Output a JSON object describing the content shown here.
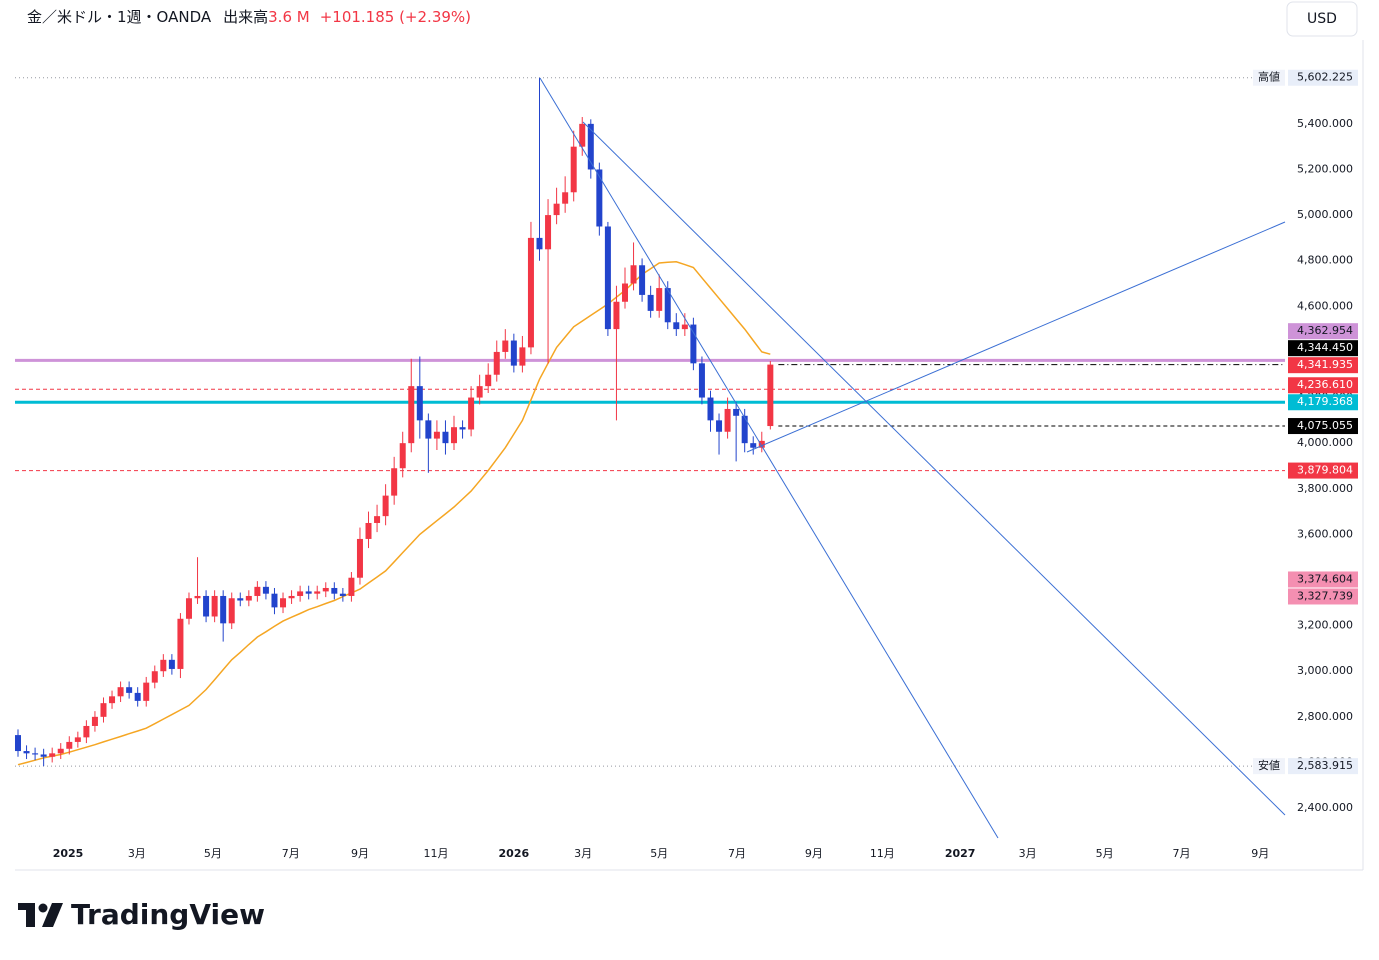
{
  "chart_data": {
    "type": "candlestick",
    "title": "金／米ドル・1週・OANDA",
    "volume_label": "出来高",
    "volume": "3.6 M",
    "change": "+101.185 (+2.39%)",
    "currency": "USD",
    "brand": "TradingView",
    "up_color": "#f23645",
    "down_color": "#2244cc",
    "open": [
      2720,
      2650,
      2640,
      2635,
      2625,
      2640,
      2660,
      2690,
      2710,
      2760,
      2800,
      2860,
      2890,
      2930,
      2905,
      2870,
      2950,
      3000,
      3050,
      3010,
      3230,
      3320,
      3330,
      3240,
      3330,
      3210,
      3320,
      3310,
      3330,
      3370,
      3340,
      3280,
      3320,
      3330,
      3350,
      3340,
      3350,
      3365,
      3340,
      3330,
      3410,
      3580,
      3650,
      3680,
      3770,
      3890,
      4000,
      4250,
      4100,
      4020,
      4050,
      4000,
      4070,
      4060,
      4200,
      4250,
      4300,
      4400,
      4450,
      4340,
      4420,
      4900,
      4850,
      5000,
      5050,
      5100,
      5300,
      5400,
      5200,
      4950,
      4500,
      4620,
      4700,
      4780,
      4650,
      4580,
      4680,
      4530,
      4500,
      4520,
      4350,
      4200,
      4100,
      4050,
      4150,
      4120,
      4000,
      3980,
      4075.055
    ],
    "high": [
      2745,
      2675,
      2665,
      2660,
      2665,
      2685,
      2715,
      2735,
      2785,
      2825,
      2885,
      2915,
      2955,
      2955,
      2930,
      2975,
      3025,
      3075,
      3075,
      3255,
      3345,
      3500,
      3355,
      3355,
      3355,
      3345,
      3345,
      3355,
      3395,
      3395,
      3365,
      3345,
      3355,
      3375,
      3375,
      3375,
      3390,
      3390,
      3365,
      3435,
      3630,
      3700,
      3730,
      3820,
      3940,
      4050,
      4370,
      4380,
      4130,
      4100,
      4100,
      4120,
      4100,
      4250,
      4300,
      4350,
      4450,
      4500,
      4480,
      4470,
      4970,
      5602.225,
      5070,
      5120,
      5170,
      5370,
      5430,
      5420,
      5230,
      4970,
      4690,
      4770,
      4880,
      4810,
      4690,
      4740,
      4710,
      4570,
      4570,
      4550,
      4380,
      4230,
      4130,
      4200,
      4180,
      4150,
      4030,
      4050,
      4360
    ],
    "low": [
      2625,
      2615,
      2610,
      2583.915,
      2600,
      2615,
      2635,
      2665,
      2685,
      2735,
      2775,
      2835,
      2865,
      2880,
      2845,
      2845,
      2925,
      2975,
      2985,
      2970,
      3205,
      3295,
      3215,
      3215,
      3130,
      3185,
      3285,
      3285,
      3305,
      3315,
      3250,
      3255,
      3295,
      3305,
      3315,
      3315,
      3325,
      3315,
      3305,
      3305,
      3380,
      3540,
      3610,
      3640,
      3730,
      3850,
      3960,
      4020,
      3870,
      3970,
      3950,
      3970,
      4020,
      4030,
      4170,
      4220,
      4270,
      4370,
      4310,
      4310,
      4390,
      4800,
      4350,
      4960,
      5010,
      5060,
      5260,
      5160,
      4910,
      4470,
      4100,
      4590,
      4670,
      4620,
      4550,
      4550,
      4500,
      4470,
      4470,
      4320,
      4170,
      4050,
      3950,
      4020,
      3920,
      3960,
      3950,
      3960,
      4060
    ],
    "close": [
      2650,
      2640,
      2635,
      2625,
      2640,
      2660,
      2690,
      2710,
      2760,
      2800,
      2860,
      2890,
      2930,
      2905,
      2870,
      2950,
      3000,
      3050,
      3010,
      3230,
      3320,
      3330,
      3240,
      3330,
      3210,
      3320,
      3310,
      3330,
      3370,
      3340,
      3280,
      3320,
      3330,
      3350,
      3340,
      3350,
      3365,
      3340,
      3330,
      3410,
      3580,
      3650,
      3680,
      3770,
      3890,
      4000,
      4250,
      4100,
      4020,
      4050,
      4000,
      4070,
      4060,
      4200,
      4250,
      4300,
      4400,
      4450,
      4340,
      4420,
      4900,
      4850,
      5000,
      5050,
      5100,
      5300,
      5400,
      5200,
      4950,
      4500,
      4620,
      4700,
      4780,
      4650,
      4580,
      4680,
      4530,
      4500,
      4520,
      4350,
      4200,
      4100,
      4050,
      4150,
      4120,
      4000,
      3980,
      4010,
      4344.45
    ],
    "moving_average": {
      "color": "#f5a623",
      "values": [
        2590,
        2600,
        2610,
        2620,
        2628,
        2635,
        2645,
        2656,
        2667,
        2678,
        2690,
        2702,
        2714,
        2726,
        2738,
        2750,
        2770,
        2790,
        2810,
        2830,
        2850,
        2885,
        2920,
        2963,
        3007,
        3050,
        3083,
        3117,
        3150,
        3173,
        3197,
        3220,
        3237,
        3253,
        3270,
        3283,
        3297,
        3310,
        3327,
        3343,
        3360,
        3387,
        3413,
        3440,
        3480,
        3520,
        3560,
        3600,
        3630,
        3660,
        3690,
        3720,
        3755,
        3790,
        3835,
        3880,
        3930,
        3980,
        4040,
        4100,
        4190,
        4280,
        4350,
        4420,
        4465,
        4510,
        4535,
        4560,
        4585,
        4610,
        4640,
        4670,
        4705,
        4740,
        4765,
        4790,
        4793,
        4795,
        4783,
        4770,
        4725,
        4680,
        4635,
        4590,
        4545,
        4500,
        4450,
        4400,
        4390
      ]
    },
    "xlim": [
      -0.35,
      148.2
    ],
    "xticks": [
      {
        "value": 5.85,
        "label": "2025"
      },
      {
        "value": 13.9,
        "label": "3月"
      },
      {
        "value": 22.8,
        "label": "5月"
      },
      {
        "value": 31.9,
        "label": "7月"
      },
      {
        "value": 40.0,
        "label": "9月"
      },
      {
        "value": 48.9,
        "label": "11月"
      },
      {
        "value": 58.0,
        "label": "2026"
      },
      {
        "value": 66.1,
        "label": "3月"
      },
      {
        "value": 75.0,
        "label": "5月"
      },
      {
        "value": 84.1,
        "label": "7月"
      },
      {
        "value": 93.1,
        "label": "9月"
      },
      {
        "value": 101.1,
        "label": "11月"
      },
      {
        "value": 110.2,
        "label": "2027"
      },
      {
        "value": 118.1,
        "label": "3月"
      },
      {
        "value": 127.1,
        "label": "5月"
      },
      {
        "value": 136.1,
        "label": "7月"
      },
      {
        "value": 145.3,
        "label": "9月"
      }
    ],
    "ylim": [
      2260,
      5680
    ],
    "yticks": [
      {
        "value": 2400,
        "label": "2,400.000"
      },
      {
        "value": 2600,
        "label": "2,600.000"
      },
      {
        "value": 2800,
        "label": "2,800.000"
      },
      {
        "value": 3000,
        "label": "3,000.000"
      },
      {
        "value": 3200,
        "label": "3,200.000"
      },
      {
        "value": 3400,
        "label": "3,400.000"
      },
      {
        "value": 3600,
        "label": "3,600.000"
      },
      {
        "value": 3800,
        "label": "3,800.000"
      },
      {
        "value": 4000,
        "label": "4,000.000"
      },
      {
        "value": 4200,
        "label": "4,200.000"
      },
      {
        "value": 4400,
        "label": "4,400.000"
      },
      {
        "value": 4600,
        "label": "4,600.000"
      },
      {
        "value": 4800,
        "label": "4,800.000"
      },
      {
        "value": 5000,
        "label": "5,000.000"
      },
      {
        "value": 5200,
        "label": "5,200.000"
      },
      {
        "value": 5400,
        "label": "5,400.000"
      }
    ],
    "high_marker": {
      "text": "高値",
      "value": 5602.225,
      "label": "5,602.225"
    },
    "low_marker": {
      "text": "安値",
      "value": 2583.915,
      "label": "2,583.915"
    },
    "price_lines": [
      {
        "value": 4362.954,
        "label": "4,362.954",
        "color": "#ce93d8",
        "text_color": "#131722",
        "line": "solid",
        "span": "full"
      },
      {
        "value": 4344.45,
        "label": "4,344.450",
        "color": "#000000",
        "text_color": "#ffffff",
        "line": "dashdot",
        "span": "last"
      },
      {
        "value": 4341.935,
        "label": "4,341.935",
        "color": "#f23645",
        "text_color": "#ffffff",
        "line": "none",
        "span": "full"
      },
      {
        "value": 4236.61,
        "label": "4,236.610",
        "color": "#f23645",
        "text_color": "#ffffff",
        "line": "dashed",
        "span": "full"
      },
      {
        "value": 4179.368,
        "label": "4,179.368",
        "color": "#00bcd4",
        "text_color": "#ffffff",
        "line": "solid",
        "span": "full"
      },
      {
        "value": 4075.055,
        "label": "4,075.055",
        "color": "#000000",
        "text_color": "#ffffff",
        "line": "dashed",
        "span": "last"
      },
      {
        "value": 3879.804,
        "label": "3,879.804",
        "color": "#f23645",
        "text_color": "#ffffff",
        "line": "dashed",
        "span": "full"
      },
      {
        "value": 3374.604,
        "label": "3,374.604",
        "color": "#f48fb1",
        "text_color": "#131722",
        "line": "none",
        "span": "full"
      },
      {
        "value": 3327.739,
        "label": "3,327.739",
        "color": "#f48fb1",
        "text_color": "#131722",
        "line": "none",
        "span": "full"
      }
    ]
  }
}
